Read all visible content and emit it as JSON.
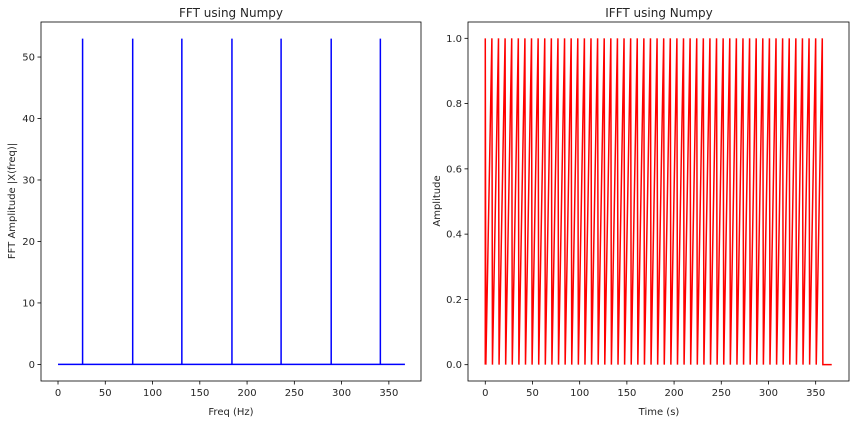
{
  "chart_data": [
    {
      "type": "stem",
      "title": "FFT using Numpy",
      "xlabel": "Freq (Hz)",
      "ylabel": "FFT Amplitude |X(freq)|",
      "xlim": [
        -18,
        384
      ],
      "ylim": [
        -2.7,
        55.7
      ],
      "xticks": [
        0,
        50,
        100,
        150,
        200,
        250,
        300,
        350
      ],
      "yticks": [
        0,
        10,
        20,
        30,
        40,
        50
      ],
      "color": "#0000ff",
      "baseline": {
        "x": [
          0,
          367
        ],
        "y": 0
      },
      "stems": {
        "x": [
          26,
          79,
          131,
          184,
          236,
          289,
          341
        ],
        "y": [
          53,
          53,
          53,
          53,
          53,
          53,
          53
        ]
      }
    },
    {
      "type": "line",
      "title": "IFFT using Numpy",
      "xlabel": "Time (s)",
      "ylabel": "Amplitude",
      "xlim": [
        -18.3,
        385.3
      ],
      "ylim": [
        -0.05,
        1.05
      ],
      "xticks": [
        0,
        50,
        100,
        150,
        200,
        250,
        300,
        350
      ],
      "yticks": [
        0.0,
        0.2,
        0.4,
        0.6,
        0.8,
        1.0
      ],
      "ytick_labels": [
        "0.0",
        "0.2",
        "0.4",
        "0.6",
        "0.8",
        "1.0"
      ],
      "color": "#ff0000",
      "pulse_train": {
        "x_start": 0,
        "x_end": 367,
        "period": 7,
        "amplitude": 1.0,
        "count": 52
      }
    }
  ]
}
